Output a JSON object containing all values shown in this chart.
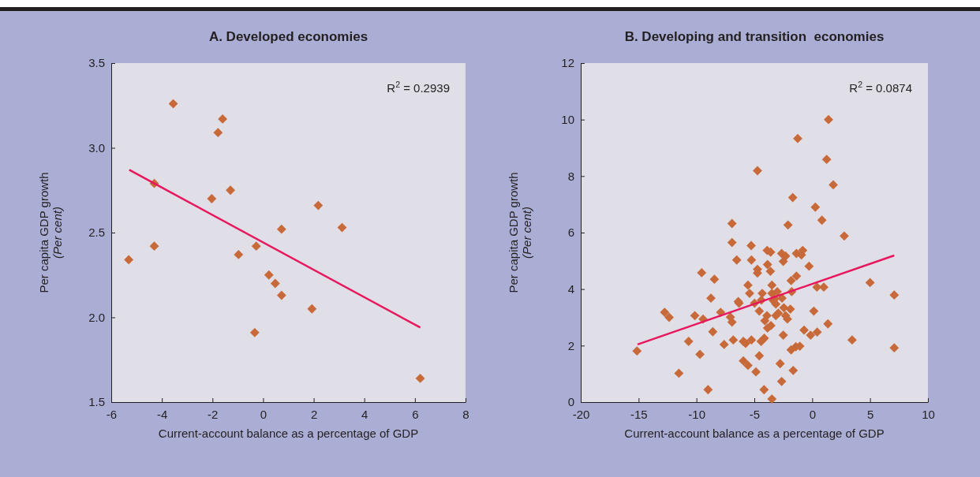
{
  "chart_data": [
    {
      "type": "scatter",
      "title": "A. Developed economies",
      "xlabel": "Current-account balance as a percentage of GDP",
      "ylabel": "Per capita GDP growth\n(Per cent)",
      "annotations": [
        "R$^{2}$ = 0.2939"
      ],
      "xlim": [
        -6,
        8
      ],
      "xticks": [
        -6,
        -4,
        -2,
        0,
        2,
        4,
        6,
        8
      ],
      "ylim": [
        1.5,
        3.5
      ],
      "yticks": [
        1.5,
        {
          "value": 2,
          "label": "2.0"
        },
        2.5,
        {
          "value": 3,
          "label": "3.0"
        },
        3.5
      ],
      "series": [
        {
          "color": "#c8693a",
          "marker": "diamond",
          "x": [
            -3.55,
            -1.6,
            -1.78,
            -4.3,
            -1.29,
            -2.03,
            2.18,
            3.12,
            0.73,
            -4.3,
            -0.27,
            -5.31,
            -0.97,
            0.23,
            0.48,
            0.73,
            1.93,
            -0.33,
            6.21
          ],
          "values": [
            3.26,
            3.17,
            3.09,
            2.79,
            2.75,
            2.7,
            2.66,
            2.53,
            2.52,
            2.42,
            2.42,
            2.34,
            2.37,
            2.25,
            2.2,
            2.13,
            2.05,
            1.91,
            1.64
          ]
        },
        {
          "type": "line",
          "color": "#e8175d",
          "x": [
            -5.29,
            6.21
          ],
          "values": [
            2.87,
            1.94
          ]
        }
      ]
    },
    {
      "type": "scatter",
      "title": "B. Developing and transition  economies",
      "xlabel": "Current-account balance as a percentage of GDP",
      "ylabel": "Per capita GDP growth\n(Per cent)",
      "annotations": [
        "R$^{2}$ = 0.0874"
      ],
      "xlim": [
        -20,
        10
      ],
      "xticks": [
        -20,
        -15,
        -10,
        -5,
        0,
        5,
        10
      ],
      "ylim": [
        0,
        12
      ],
      "yticks": [
        0,
        2,
        4,
        6,
        8,
        10,
        12
      ],
      "series": [
        {
          "color": "#c8693a",
          "marker": "diamond",
          "x": [
            1.41,
            -1.25,
            1.25,
            -4.73,
            1.82,
            -1.68,
            0.27,
            0.84,
            -6.93,
            -2.09,
            2.77,
            -6.93,
            -5.27,
            -3.89,
            -3.59,
            -2.64,
            -2.3,
            -1.36,
            -0.82,
            -0.93,
            -6.52,
            -5.25,
            -2.5,
            -3.86,
            -0.27,
            -4.73,
            -4.73,
            -3.61,
            -9.55,
            -8.45,
            -1.36,
            -1.82,
            -5.55,
            -3.48,
            5.0,
            0.41,
            1.0,
            -5.41,
            -4.32,
            -3.48,
            -3.02,
            -1.77,
            7.09,
            -8.75,
            -6.39,
            -6.32,
            -4.98,
            -4.39,
            -3.36,
            -3.14,
            -2.61,
            -3.23,
            -2.45,
            -1.89,
            -4.57,
            0.14,
            -12.75,
            -12.36,
            -7.91,
            -10.14,
            -9.43,
            -7.07,
            -6.93,
            -3.91,
            -2.93,
            -3.14,
            -2.3,
            -2.14,
            -4.09,
            -3.57,
            -3.86,
            1.36,
            -8.59,
            -0.7,
            -0.14,
            0.43,
            -2.5,
            -6.82,
            -5.95,
            -5.75,
            -5.25,
            -4.41,
            -4.14,
            -10.68,
            -7.61,
            -1.82,
            -1.41,
            -1.07,
            3.45,
            7.09,
            -15.14,
            -9.7,
            -4.57,
            -5.95,
            -5.55,
            -2.77,
            -1.64,
            -11.52,
            -4.86,
            -2.64,
            -9.0,
            -4.16,
            -3.48
          ],
          "values": [
            10.0,
            9.33,
            8.59,
            8.19,
            7.69,
            7.24,
            6.9,
            6.44,
            6.32,
            6.27,
            5.88,
            5.65,
            5.54,
            5.37,
            5.31,
            5.26,
            5.17,
            5.26,
            5.37,
            5.21,
            5.03,
            5.03,
            4.98,
            4.87,
            4.81,
            4.7,
            4.57,
            4.63,
            4.58,
            4.35,
            4.46,
            4.3,
            4.14,
            4.14,
            4.23,
            4.07,
            4.07,
            3.85,
            3.85,
            3.85,
            3.91,
            3.91,
            3.79,
            3.68,
            3.56,
            3.5,
            3.5,
            3.61,
            3.59,
            3.47,
            3.68,
            3.66,
            3.34,
            3.29,
            3.22,
            3.22,
            3.18,
            3.0,
            3.18,
            3.06,
            2.94,
            3.01,
            2.83,
            3.06,
            3.15,
            3.06,
            3.06,
            2.94,
            2.88,
            2.71,
            2.62,
            2.77,
            2.49,
            2.55,
            2.37,
            2.48,
            2.37,
            2.2,
            2.15,
            2.08,
            2.2,
            2.15,
            2.26,
            2.15,
            2.04,
            1.85,
            1.96,
            1.98,
            2.2,
            1.92,
            1.81,
            1.69,
            1.64,
            1.46,
            1.3,
            1.36,
            1.12,
            1.02,
            1.07,
            0.73,
            0.44,
            0.44,
            0.11
          ]
        },
        {
          "type": "line",
          "color": "#e8175d",
          "x": [
            -15.09,
            7.09
          ],
          "values": [
            2.04,
            5.19
          ]
        }
      ]
    }
  ]
}
